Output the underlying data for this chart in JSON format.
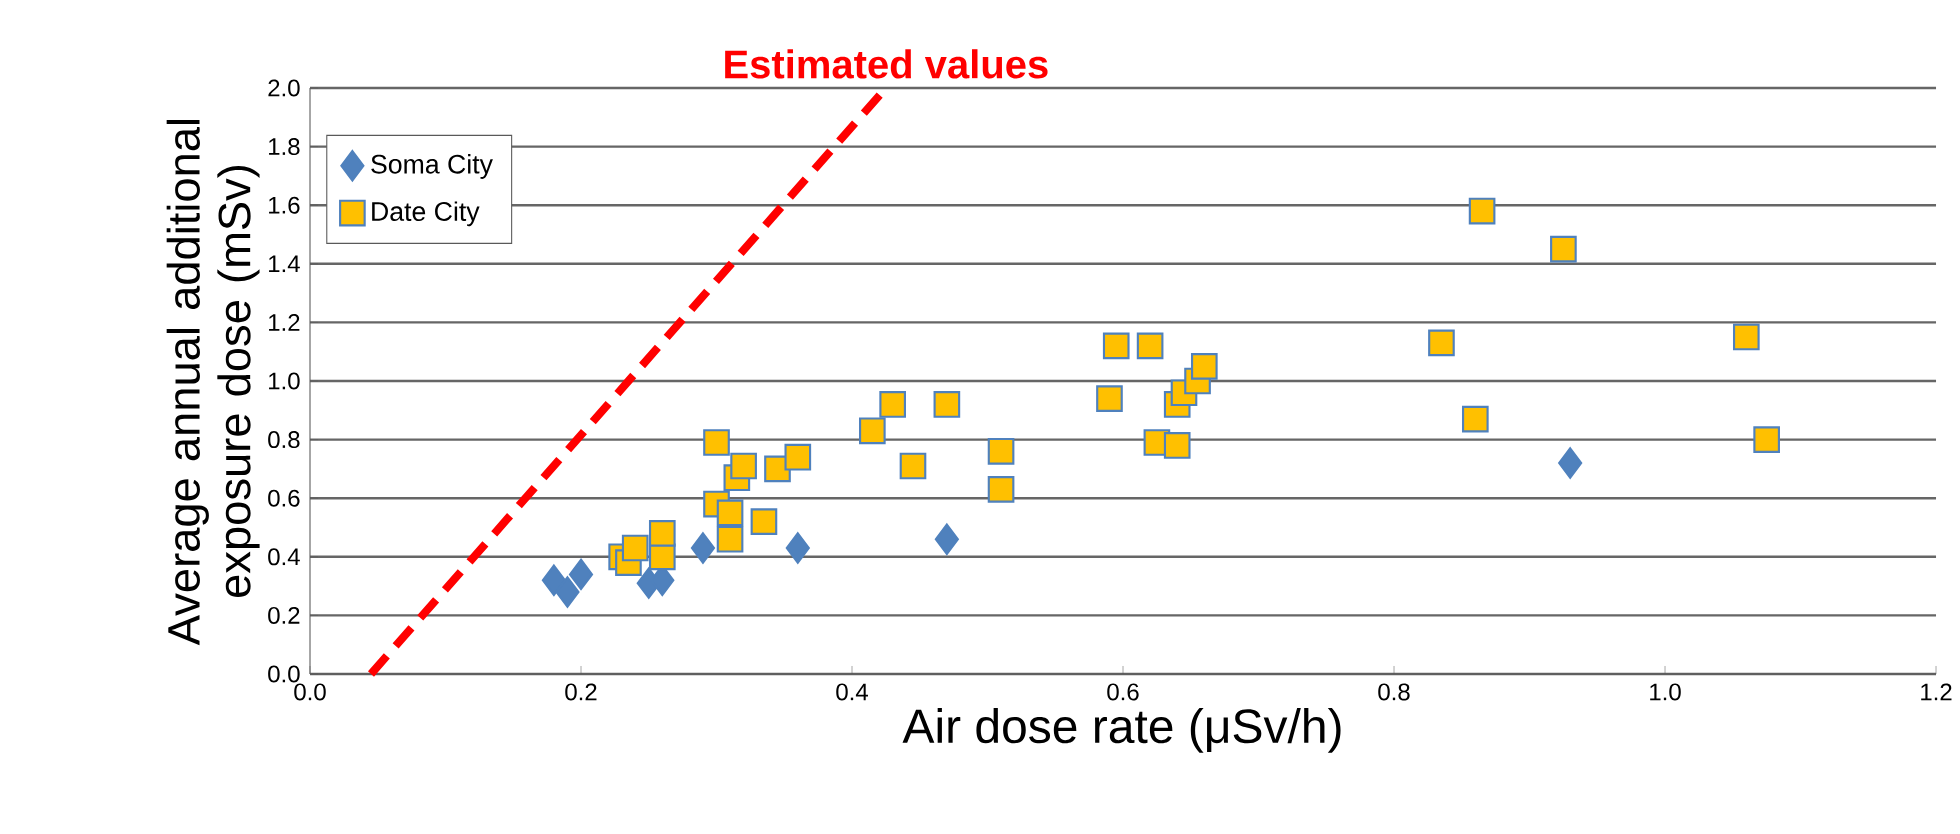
{
  "chart_data": {
    "type": "scatter",
    "xlabel": "Air dose rate (μSv/h)",
    "ylabel": "Average annual additional exposure dose (mSv)",
    "xlim": [
      0,
      1.2
    ],
    "xticks": [
      {
        "value": 0,
        "label": "0.0"
      },
      {
        "value": 0.2,
        "label": "0.2"
      },
      {
        "value": 0.4,
        "label": "0.4"
      },
      {
        "value": 0.6,
        "label": "0.6"
      },
      {
        "value": 0.8,
        "label": "0.8"
      },
      {
        "value": 1.0,
        "label": "1.0"
      },
      {
        "value": 1.2,
        "label": "1.2"
      }
    ],
    "ylim": [
      0,
      2
    ],
    "yticks": [
      {
        "value": 0,
        "label": "0.0"
      },
      {
        "value": 0.2,
        "label": "0.2"
      },
      {
        "value": 0.4,
        "label": "0.4"
      },
      {
        "value": 0.6,
        "label": "0.6"
      },
      {
        "value": 0.8,
        "label": "0.8"
      },
      {
        "value": 1.0,
        "label": "1.0"
      },
      {
        "value": 1.2,
        "label": "1.2"
      },
      {
        "value": 1.4,
        "label": "1.4"
      },
      {
        "value": 1.6,
        "label": "1.6"
      },
      {
        "value": 1.8,
        "label": "1.8"
      },
      {
        "value": 2.0,
        "label": "2.0"
      }
    ],
    "grid": "y",
    "legend": "top left",
    "series": [
      {
        "name": "Soma City",
        "color": "#4f81bd",
        "marker": "diamond",
        "x": [
          0.18,
          0.19,
          0.2,
          0.25,
          0.26,
          0.29,
          0.36,
          0.47,
          0.93
        ],
        "values": [
          0.32,
          0.28,
          0.34,
          0.31,
          0.32,
          0.43,
          0.43,
          0.46,
          0.72
        ]
      },
      {
        "name": "Date City",
        "color": "#ffc000",
        "marker": "square",
        "x": [
          0.23,
          0.235,
          0.24,
          0.26,
          0.26,
          0.3,
          0.3,
          0.31,
          0.31,
          0.315,
          0.32,
          0.335,
          0.345,
          0.36,
          0.415,
          0.43,
          0.445,
          0.47,
          0.51,
          0.51,
          0.59,
          0.595,
          0.62,
          0.625,
          0.64,
          0.64,
          0.645,
          0.655,
          0.66,
          0.835,
          0.865,
          0.86,
          0.925,
          1.06,
          1.075
        ],
        "values": [
          0.4,
          0.38,
          0.43,
          0.4,
          0.48,
          0.79,
          0.58,
          0.55,
          0.46,
          0.67,
          0.71,
          0.52,
          0.7,
          0.74,
          0.83,
          0.92,
          0.71,
          0.92,
          0.76,
          0.63,
          0.94,
          1.12,
          1.12,
          0.79,
          0.78,
          0.92,
          0.96,
          1.0,
          1.05,
          1.13,
          1.58,
          0.87,
          1.45,
          1.15,
          0.8
        ]
      },
      {
        "name": "Estimated values",
        "type": "line",
        "color": "#ff0000",
        "line_style": "dashed",
        "marker": "none",
        "x": [
          0.045,
          0.425
        ],
        "values": [
          0,
          2
        ]
      }
    ]
  }
}
